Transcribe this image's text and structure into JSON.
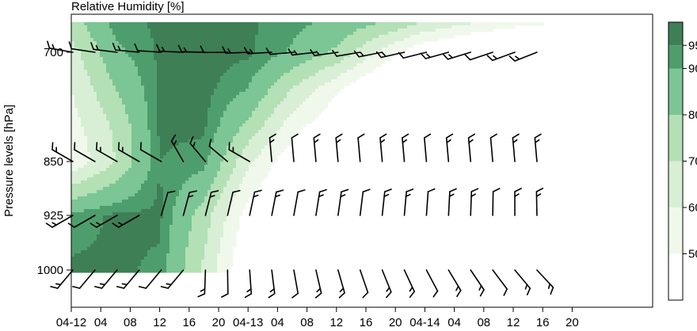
{
  "chart_data": {
    "type": "contour_with_wind_barbs",
    "title": "Relative Humidity [%]",
    "ylabel": "Pressure levels [hPa]",
    "y_scale": "pressure (inverted)",
    "ylim": [
      1060,
      640
    ],
    "xlim": [
      0,
      62
    ],
    "x_tick_labels": [
      "04-12",
      "04",
      "08",
      "12",
      "16",
      "20",
      "04-13",
      "04",
      "08",
      "12",
      "16",
      "20",
      "04-14",
      "04",
      "08",
      "12",
      "16",
      "20"
    ],
    "pressure_levels": [
      700,
      850,
      925,
      1000
    ],
    "y_tick_labels": [
      "700",
      "850",
      "925",
      "1000"
    ],
    "colorbar": {
      "ticks": [
        50,
        60,
        70,
        80,
        90,
        95
      ],
      "levels": [
        40,
        50,
        60,
        70,
        80,
        90,
        95,
        100
      ],
      "colors": [
        "#ffffff",
        "#f0f8ec",
        "#d8efd6",
        "#b3e0b4",
        "#7cc595",
        "#4e9e6d",
        "#3e7f56"
      ]
    },
    "barb_times_hours": [
      0,
      3,
      6,
      9,
      12,
      15,
      18,
      21,
      24,
      27,
      30,
      33,
      36,
      39,
      42,
      45,
      48,
      51,
      54,
      57,
      60,
      63
    ],
    "rh_hours": [
      0,
      6,
      12,
      18,
      24,
      30,
      36,
      42,
      48,
      54,
      60,
      66
    ],
    "rh_field": {
      "680": [
        75,
        93,
        96,
        97,
        96,
        92,
        88,
        80,
        70,
        62,
        55,
        50
      ],
      "700": [
        66,
        88,
        96,
        97,
        96,
        89,
        78,
        58,
        40,
        30,
        25,
        22
      ],
      "750": [
        60,
        80,
        96,
        97,
        90,
        70,
        52,
        35,
        25,
        20,
        18,
        15
      ],
      "800": [
        56,
        72,
        96,
        96,
        78,
        55,
        40,
        28,
        20,
        16,
        14,
        12
      ],
      "850": [
        52,
        70,
        95,
        93,
        62,
        42,
        30,
        20,
        15,
        12,
        10,
        10
      ],
      "925": [
        92,
        96,
        96,
        75,
        45,
        32,
        25,
        18,
        14,
        12,
        10,
        10
      ],
      "1000": [
        96,
        96,
        94,
        68,
        38,
        25,
        20,
        15,
        12,
        10,
        10,
        10
      ]
    }
  }
}
